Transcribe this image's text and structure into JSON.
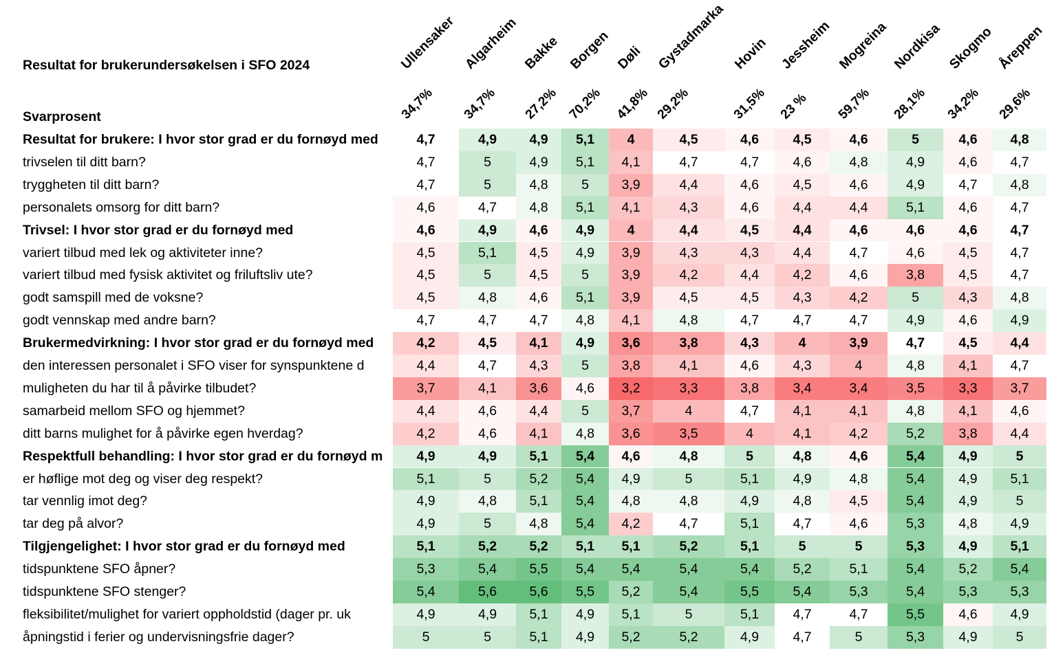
{
  "chart_data": {
    "type": "heatmap",
    "title": "Resultat for brukerundersøkelsen i SFO 2024",
    "response_label": "Svarprosent",
    "columns": [
      "Ullensaker",
      "Algarheim",
      "Bakke",
      "Borgen",
      "Døli",
      "Gystadmarka",
      "Hovin",
      "Jessheim",
      "Mogreina",
      "Nordkisa",
      "Skogmo",
      "Åreppen"
    ],
    "response_rates": [
      "34,7%",
      "34,7%",
      "27,2%",
      "70,2%",
      "41,8%",
      "29,2%",
      "31,5%",
      "23 %",
      "59,7%",
      "28,1%",
      "34,2%",
      "29,6%"
    ],
    "rows": [
      {
        "label": "Resultat for brukere: I hvor stor grad er du fornøyd med",
        "bold": true,
        "values": [
          4.7,
          4.9,
          4.9,
          5.1,
          4,
          4.5,
          4.6,
          4.5,
          4.6,
          5,
          4.6,
          4.8
        ]
      },
      {
        "label": "trivselen til ditt barn?",
        "bold": false,
        "values": [
          4.7,
          5,
          4.9,
          5.1,
          4.1,
          4.7,
          4.7,
          4.6,
          4.8,
          4.9,
          4.6,
          4.7
        ]
      },
      {
        "label": "tryggheten til ditt barn?",
        "bold": false,
        "values": [
          4.7,
          5,
          4.8,
          5,
          3.9,
          4.4,
          4.6,
          4.5,
          4.6,
          4.9,
          4.7,
          4.8
        ]
      },
      {
        "label": "personalets omsorg for ditt barn?",
        "bold": false,
        "values": [
          4.6,
          4.7,
          4.8,
          5.1,
          4.1,
          4.3,
          4.6,
          4.4,
          4.4,
          5.1,
          4.6,
          4.7
        ]
      },
      {
        "label": "Trivsel: I hvor stor grad er du fornøyd med",
        "bold": true,
        "values": [
          4.6,
          4.9,
          4.6,
          4.9,
          4,
          4.4,
          4.5,
          4.4,
          4.6,
          4.6,
          4.6,
          4.7
        ]
      },
      {
        "label": "variert tilbud med lek og aktiviteter inne?",
        "bold": false,
        "values": [
          4.5,
          5.1,
          4.5,
          4.9,
          3.9,
          4.3,
          4.3,
          4.4,
          4.7,
          4.6,
          4.5,
          4.7
        ]
      },
      {
        "label": "variert tilbud med fysisk aktivitet og friluftsliv ute?",
        "bold": false,
        "values": [
          4.5,
          5,
          4.5,
          5,
          3.9,
          4.2,
          4.4,
          4.2,
          4.6,
          3.8,
          4.5,
          4.7
        ]
      },
      {
        "label": "godt samspill med de voksne?",
        "bold": false,
        "values": [
          4.5,
          4.8,
          4.6,
          5.1,
          3.9,
          4.5,
          4.5,
          4.3,
          4.2,
          5,
          4.3,
          4.8
        ]
      },
      {
        "label": "godt vennskap med andre barn?",
        "bold": false,
        "values": [
          4.7,
          4.7,
          4.7,
          4.8,
          4.1,
          4.8,
          4.7,
          4.7,
          4.7,
          4.9,
          4.6,
          4.9
        ]
      },
      {
        "label": "Brukermedvirkning: I hvor stor grad er du fornøyd med",
        "bold": true,
        "values": [
          4.2,
          4.5,
          4.1,
          4.9,
          3.6,
          3.8,
          4.3,
          4,
          3.9,
          4.7,
          4.5,
          4.4
        ]
      },
      {
        "label": "den interessen personalet i SFO viser for synspunktene d",
        "bold": false,
        "values": [
          4.4,
          4.7,
          4.3,
          5,
          3.8,
          4.1,
          4.6,
          4.3,
          4,
          4.8,
          4.1,
          4.7
        ]
      },
      {
        "label": "muligheten du har til å påvirke tilbudet?",
        "bold": false,
        "values": [
          3.7,
          4.1,
          3.6,
          4.6,
          3.2,
          3.3,
          3.8,
          3.4,
          3.4,
          3.5,
          3.3,
          3.7
        ]
      },
      {
        "label": "samarbeid mellom SFO og hjemmet?",
        "bold": false,
        "values": [
          4.4,
          4.6,
          4.4,
          5,
          3.7,
          4,
          4.7,
          4.1,
          4.1,
          4.8,
          4.1,
          4.6
        ]
      },
      {
        "label": "ditt barns mulighet for å påvirke egen hverdag?",
        "bold": false,
        "values": [
          4.2,
          4.6,
          4.1,
          4.8,
          3.6,
          3.5,
          4,
          4.1,
          4.2,
          5.2,
          3.8,
          4.4
        ]
      },
      {
        "label": "Respektfull behandling: I hvor stor grad er du fornøyd m",
        "bold": true,
        "values": [
          4.9,
          4.9,
          5.1,
          5.4,
          4.6,
          4.8,
          5,
          4.8,
          4.6,
          5.4,
          4.9,
          5
        ]
      },
      {
        "label": "er høflige mot deg og viser deg respekt?",
        "bold": false,
        "values": [
          5.1,
          5,
          5.2,
          5.4,
          4.9,
          5,
          5.1,
          4.9,
          4.8,
          5.4,
          4.9,
          5.1
        ]
      },
      {
        "label": "tar vennlig imot deg?",
        "bold": false,
        "values": [
          4.9,
          4.8,
          5.1,
          5.4,
          4.8,
          4.8,
          4.9,
          4.8,
          4.5,
          5.4,
          4.9,
          5
        ]
      },
      {
        "label": "tar deg på alvor?",
        "bold": false,
        "values": [
          4.9,
          5,
          4.8,
          5.4,
          4.2,
          4.7,
          5.1,
          4.7,
          4.6,
          5.3,
          4.8,
          4.9
        ]
      },
      {
        "label": "Tilgjengelighet: I hvor stor grad er du fornøyd med",
        "bold": true,
        "values": [
          5.1,
          5.2,
          5.2,
          5.1,
          5.1,
          5.2,
          5.1,
          5,
          5,
          5.3,
          4.9,
          5.1
        ]
      },
      {
        "label": "tidspunktene SFO åpner?",
        "bold": false,
        "values": [
          5.3,
          5.4,
          5.5,
          5.4,
          5.4,
          5.4,
          5.4,
          5.2,
          5.1,
          5.4,
          5.2,
          5.4
        ]
      },
      {
        "label": "tidspunktene SFO stenger?",
        "bold": false,
        "values": [
          5.4,
          5.6,
          5.6,
          5.5,
          5.2,
          5.4,
          5.5,
          5.4,
          5.3,
          5.4,
          5.3,
          5.3
        ]
      },
      {
        "label": "fleksibilitet/mulighet for variert oppholdstid (dager pr. uk",
        "bold": false,
        "values": [
          4.9,
          4.9,
          5.1,
          4.9,
          5.1,
          5,
          5.1,
          4.7,
          4.7,
          5.5,
          4.6,
          4.9
        ]
      },
      {
        "label": "åpningstid i ferier og undervisningsfrie dager?",
        "bold": false,
        "values": [
          5,
          5,
          5.1,
          4.9,
          5.2,
          5.2,
          4.9,
          4.7,
          5,
          5.3,
          4.9,
          5
        ]
      }
    ],
    "color_scale": {
      "low": "#f8696b",
      "mid": "#ffffff",
      "high": "#63be7b"
    }
  }
}
